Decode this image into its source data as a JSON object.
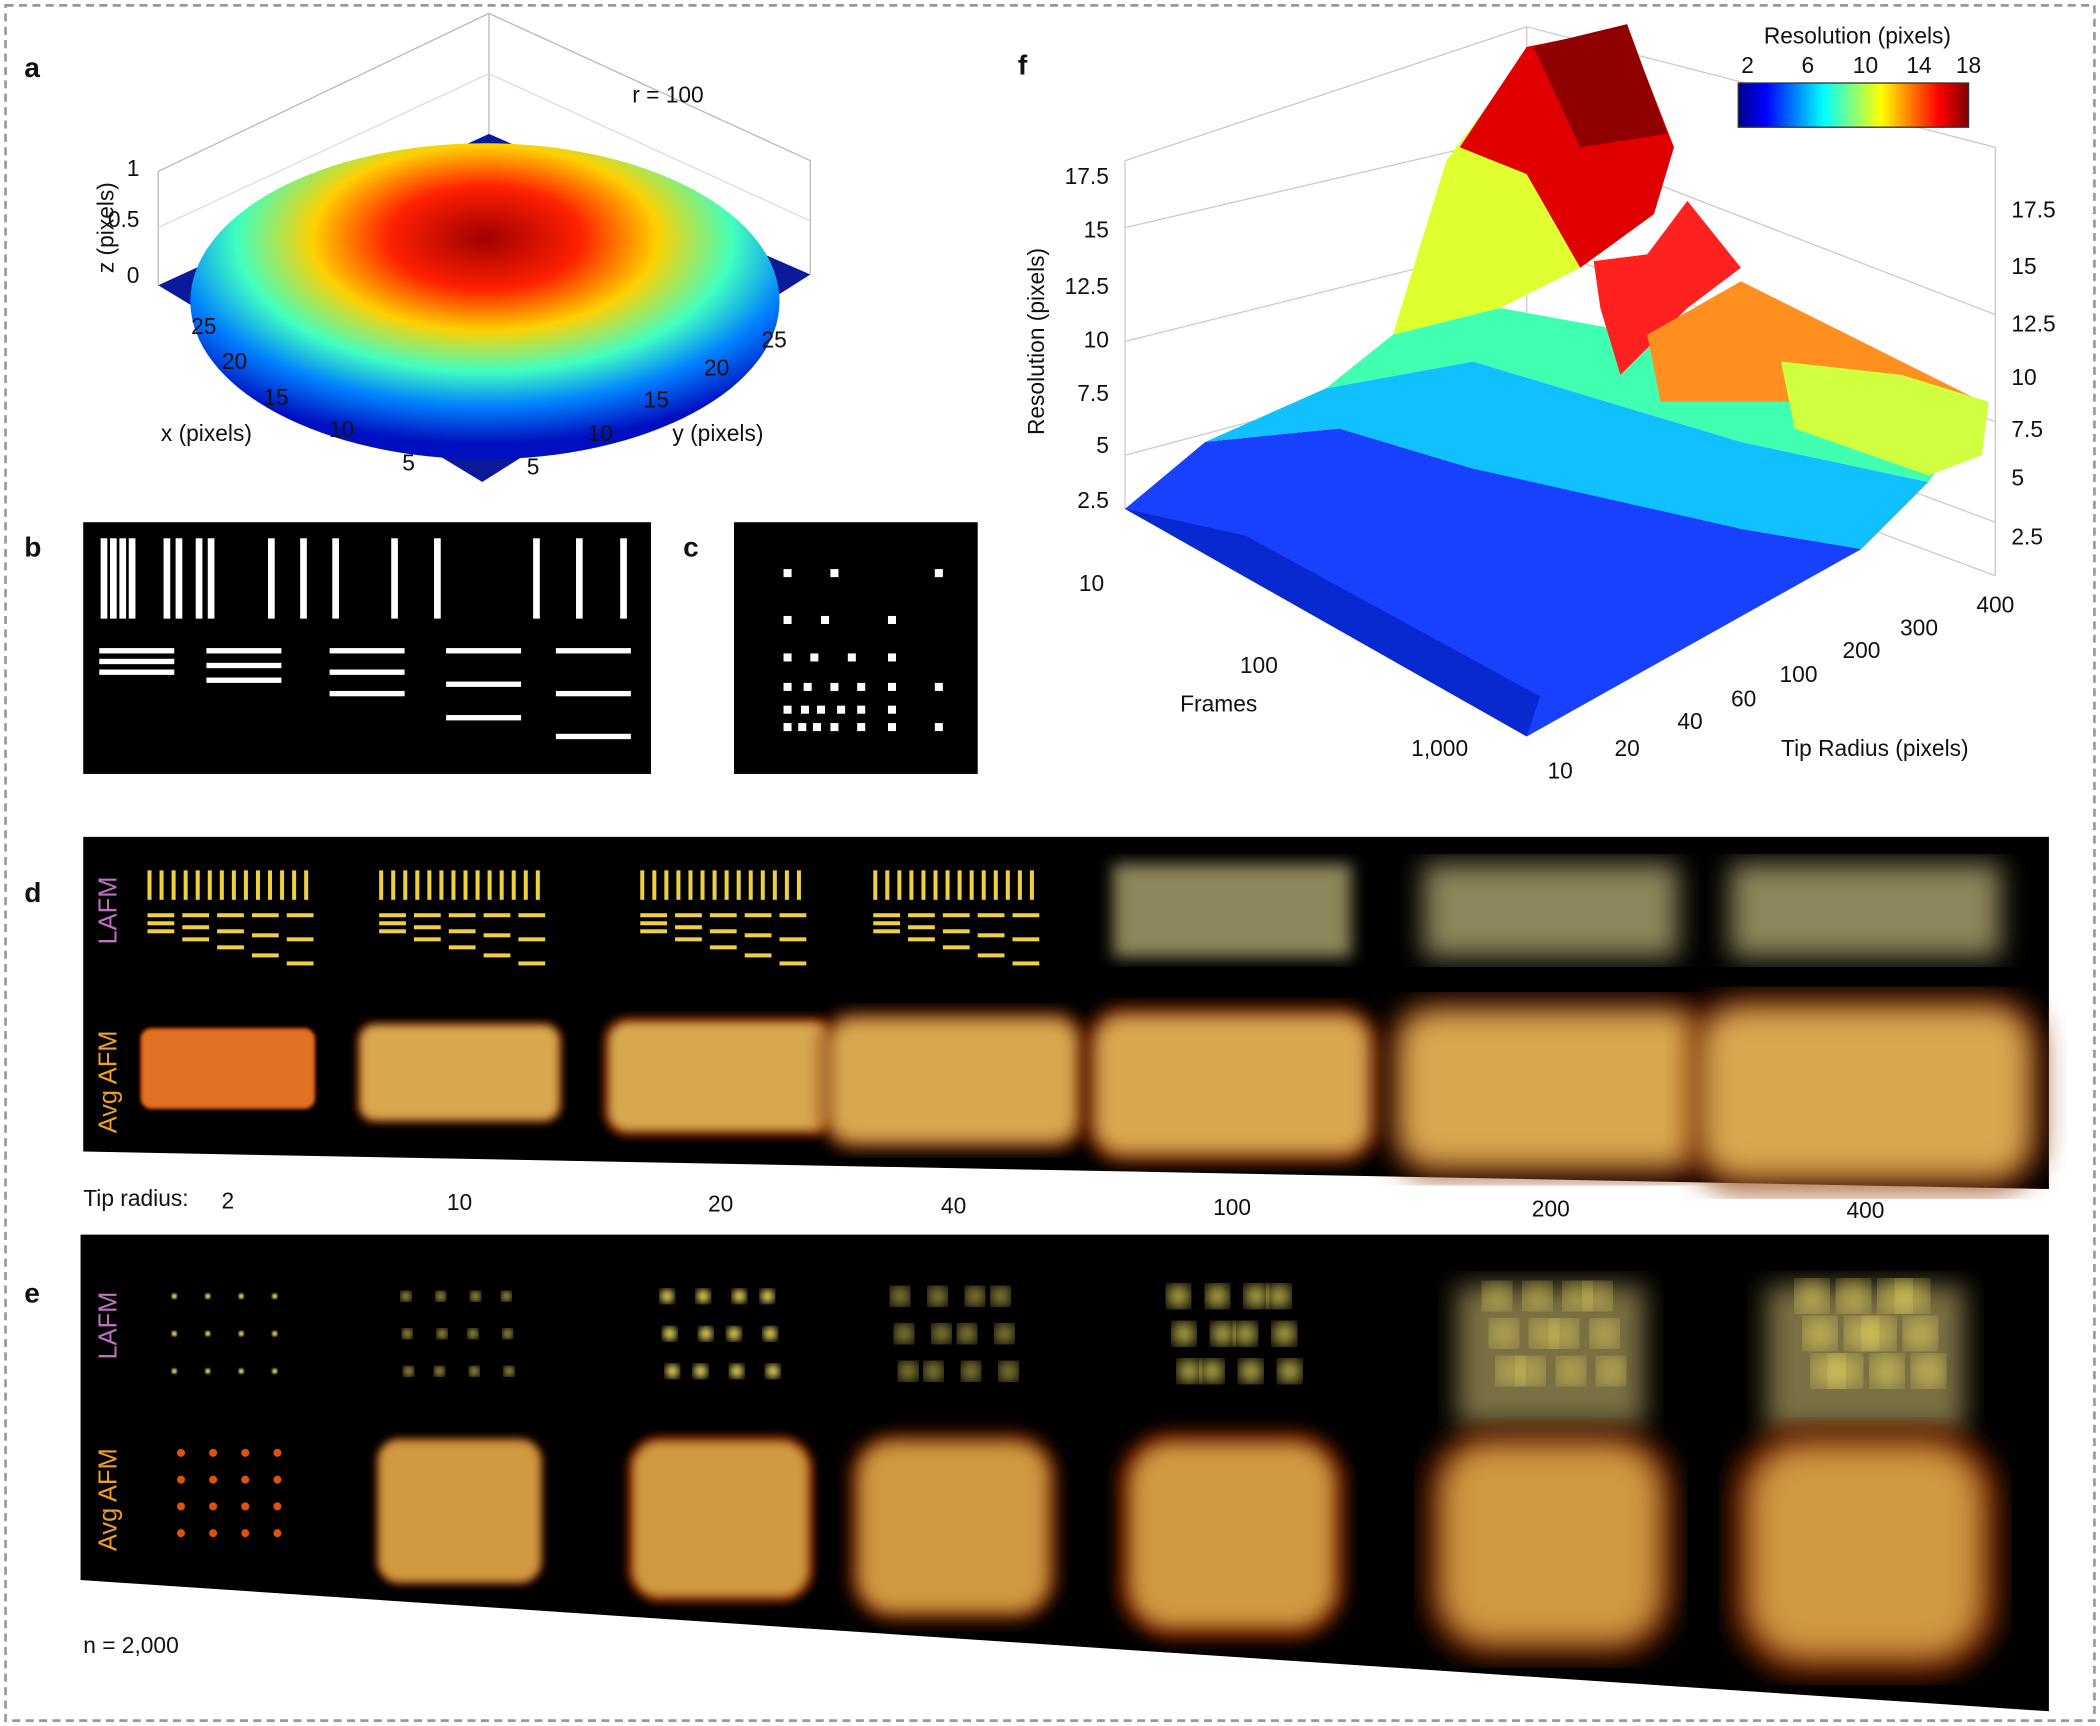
{
  "panels": {
    "a": {
      "label": "a",
      "annotation": "r = 100",
      "z_label": "z (pixels)",
      "x_label": "x (pixels)",
      "y_label": "y (pixels)",
      "z_ticks": [
        "0",
        "0.5",
        "1"
      ],
      "x_ticks": [
        "5",
        "10",
        "15",
        "20",
        "25"
      ],
      "y_ticks": [
        "5",
        "10",
        "15",
        "20",
        "25"
      ]
    },
    "b": {
      "label": "b"
    },
    "c": {
      "label": "c"
    },
    "d": {
      "label": "d",
      "rows": [
        "LAFM",
        "Avg AFM"
      ]
    },
    "tip_radius": {
      "label": "Tip radius:",
      "values": [
        "2",
        "10",
        "20",
        "40",
        "100",
        "200",
        "400"
      ]
    },
    "e": {
      "label": "e",
      "rows": [
        "LAFM",
        "Avg AFM"
      ],
      "note": "n = 2,000"
    },
    "f": {
      "label": "f",
      "z_label": "Resolution (pixels)",
      "x_label": "Frames",
      "y_label": "Tip Radius (pixels)",
      "z_ticks": [
        "2.5",
        "5",
        "7.5",
        "10",
        "12.5",
        "15",
        "17.5"
      ],
      "frames_ticks": [
        "10",
        "100",
        "1,000"
      ],
      "radius_ticks": [
        "10",
        "20",
        "40",
        "60",
        "100",
        "200",
        "300",
        "400"
      ],
      "colorbar": {
        "title": "Resolution (pixels)",
        "ticks": [
          "2",
          "6",
          "10",
          "14",
          "18"
        ]
      }
    }
  }
}
